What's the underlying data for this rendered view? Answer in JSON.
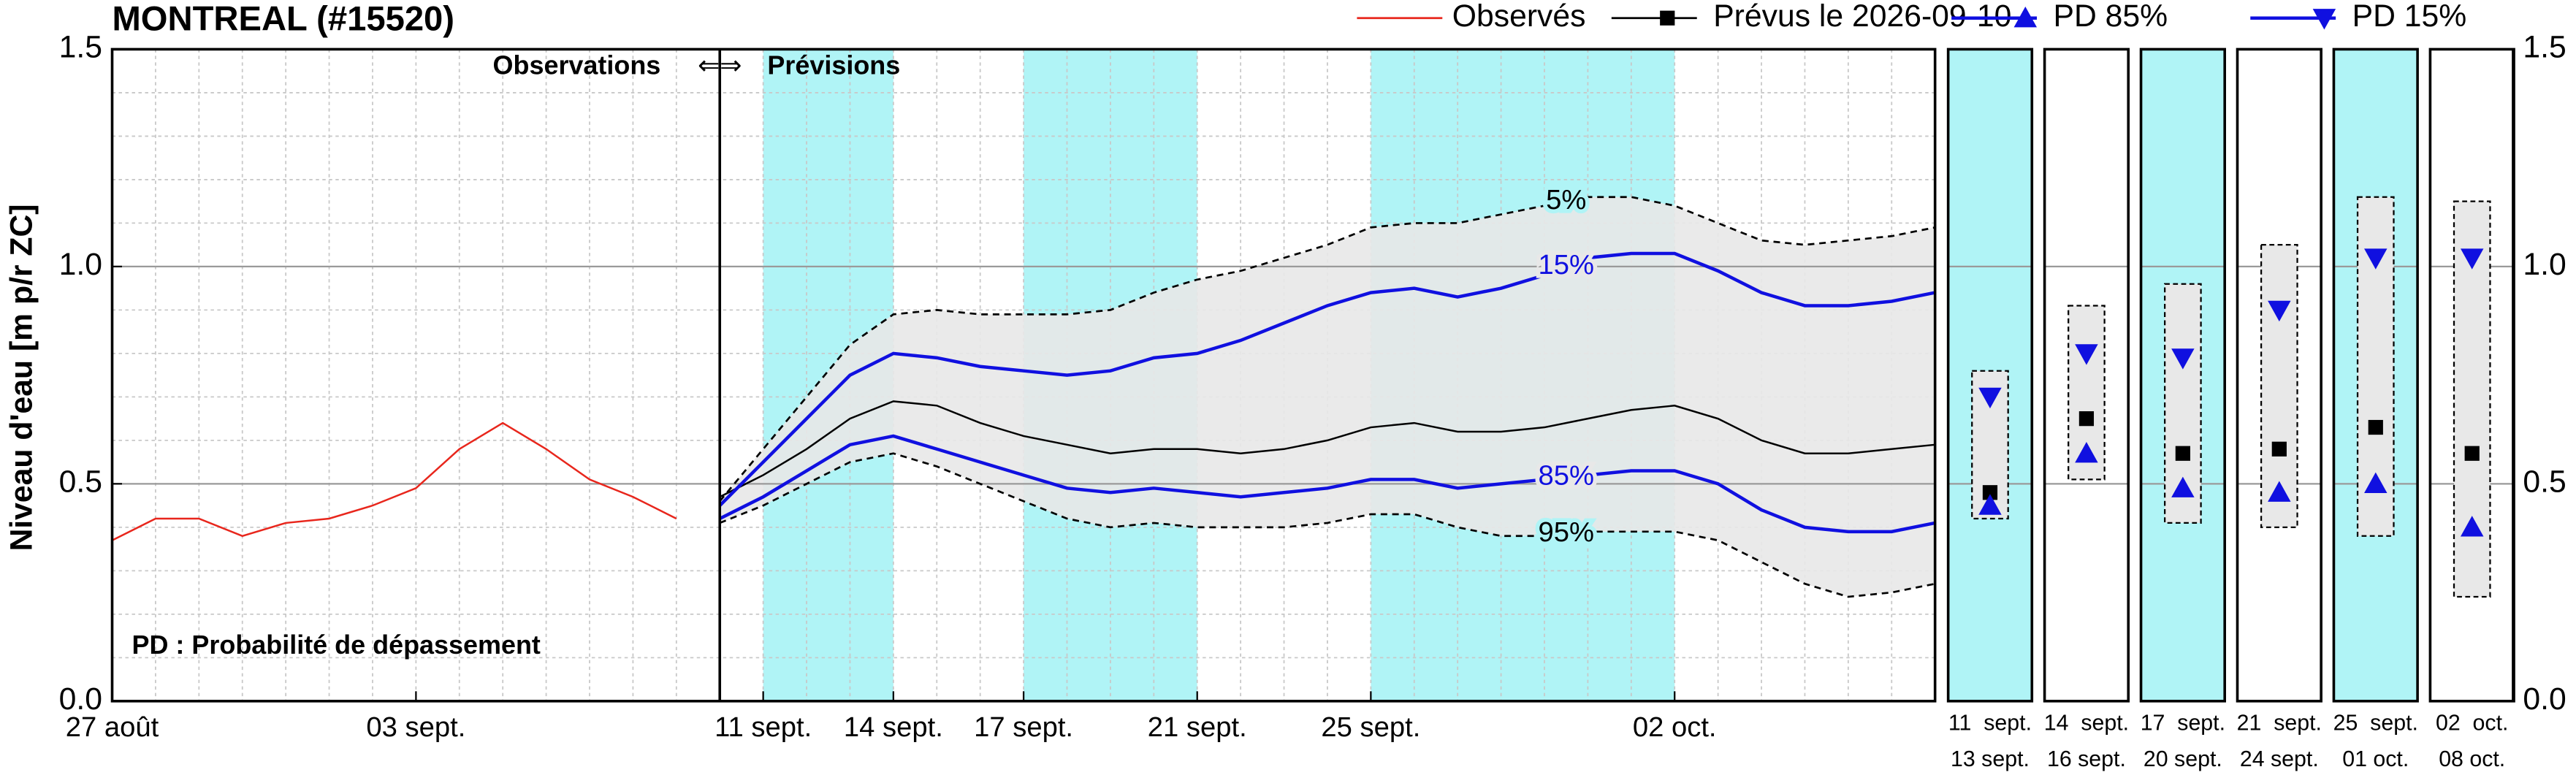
{
  "chart_data": {
    "type": "line",
    "title": "MONTREAL (#15520)",
    "y_label": "Niveau d'eau [m p/r ZC]",
    "ylim": [
      0,
      1.5
    ],
    "yticks": [
      {
        "value": 0,
        "label": "0.0"
      },
      {
        "value": 0.5,
        "label": "0.5"
      },
      {
        "value": 1,
        "label": "1.0"
      },
      {
        "value": 1.5,
        "label": "1.5"
      }
    ],
    "xlim": [
      0,
      42
    ],
    "xticks": [
      {
        "value": 0,
        "label": "27 août"
      },
      {
        "value": 7,
        "label": "03 sept."
      },
      {
        "value": 15,
        "label": "11 sept."
      },
      {
        "value": 18,
        "label": "14 sept."
      },
      {
        "value": 21,
        "label": "17 sept."
      },
      {
        "value": 25,
        "label": "21 sept."
      },
      {
        "value": 29,
        "label": "25 sept."
      },
      {
        "value": 36,
        "label": "02 oct."
      }
    ],
    "grid": true,
    "shade_color": "#b0f4f6",
    "band_color": "#e8e8e8",
    "shaded_spans": [
      [
        15,
        18
      ],
      [
        21,
        25
      ],
      [
        29,
        36
      ]
    ],
    "annotations": {
      "observations": "Observations",
      "arrows": "⇐⇒",
      "forecasts": "Prévisions",
      "note": "PD : Probabilité de dépassement"
    },
    "series": [
      {
        "name": "Observés",
        "color": "#e8261c",
        "marker": "none",
        "dash": false,
        "in_legend": true,
        "x": [
          0,
          1,
          2,
          3,
          4,
          5,
          6,
          7,
          8,
          9,
          10,
          11,
          12,
          13
        ],
        "values": [
          0.37,
          0.42,
          0.42,
          0.38,
          0.41,
          0.42,
          0.45,
          0.49,
          0.58,
          0.64,
          0.58,
          0.51,
          0.47,
          0.42
        ]
      },
      {
        "name": "Prévus le 2026-09-10",
        "color": "#000000",
        "marker": "square",
        "dash": false,
        "in_legend": true,
        "x": [
          14,
          15,
          16,
          17,
          18,
          19,
          20,
          21,
          22,
          23,
          24,
          25,
          26,
          27,
          28,
          29,
          30,
          31,
          32,
          33,
          34,
          35,
          36,
          37,
          38,
          39,
          40,
          41,
          42
        ],
        "values": [
          0.47,
          0.52,
          0.58,
          0.65,
          0.69,
          0.68,
          0.64,
          0.61,
          0.59,
          0.57,
          0.58,
          0.58,
          0.57,
          0.58,
          0.6,
          0.63,
          0.64,
          0.62,
          0.62,
          0.63,
          0.65,
          0.67,
          0.68,
          0.65,
          0.6,
          0.57,
          0.57,
          0.58,
          0.59
        ]
      },
      {
        "name": "PD 85%",
        "label": "85%",
        "color": "#1010e0",
        "marker": "triangle-up",
        "dash": false,
        "in_legend": true,
        "x": [
          14,
          15,
          16,
          17,
          18,
          19,
          20,
          21,
          22,
          23,
          24,
          25,
          26,
          27,
          28,
          29,
          30,
          31,
          32,
          33,
          34,
          35,
          36,
          37,
          38,
          39,
          40,
          41,
          42
        ],
        "values": [
          0.42,
          0.47,
          0.53,
          0.59,
          0.61,
          0.58,
          0.55,
          0.52,
          0.49,
          0.48,
          0.49,
          0.48,
          0.47,
          0.48,
          0.49,
          0.51,
          0.51,
          0.49,
          0.5,
          0.51,
          0.52,
          0.53,
          0.53,
          0.5,
          0.44,
          0.4,
          0.39,
          0.39,
          0.41
        ]
      },
      {
        "name": "PD 15%",
        "label": "15%",
        "color": "#1010e0",
        "marker": "triangle-down",
        "dash": false,
        "in_legend": true,
        "x": [
          14,
          15,
          16,
          17,
          18,
          19,
          20,
          21,
          22,
          23,
          24,
          25,
          26,
          27,
          28,
          29,
          30,
          31,
          32,
          33,
          34,
          35,
          36,
          37,
          38,
          39,
          40,
          41,
          42
        ],
        "values": [
          0.45,
          0.55,
          0.65,
          0.75,
          0.8,
          0.79,
          0.77,
          0.76,
          0.75,
          0.76,
          0.79,
          0.8,
          0.83,
          0.87,
          0.91,
          0.94,
          0.95,
          0.93,
          0.95,
          0.98,
          1.02,
          1.03,
          1.03,
          0.99,
          0.94,
          0.91,
          0.91,
          0.92,
          0.94
        ]
      },
      {
        "name": "5%",
        "color": "#000000",
        "marker": "none",
        "dash": true,
        "in_legend": false,
        "x": [
          14,
          15,
          16,
          17,
          18,
          19,
          20,
          21,
          22,
          23,
          24,
          25,
          26,
          27,
          28,
          29,
          30,
          31,
          32,
          33,
          34,
          35,
          36,
          37,
          38,
          39,
          40,
          41,
          42
        ],
        "values": [
          0.46,
          0.58,
          0.7,
          0.82,
          0.89,
          0.9,
          0.89,
          0.89,
          0.89,
          0.9,
          0.94,
          0.97,
          0.99,
          1.02,
          1.05,
          1.09,
          1.1,
          1.1,
          1.12,
          1.14,
          1.16,
          1.16,
          1.14,
          1.1,
          1.06,
          1.05,
          1.06,
          1.07,
          1.09
        ]
      },
      {
        "name": "95%",
        "color": "#000000",
        "marker": "none",
        "dash": true,
        "in_legend": false,
        "x": [
          14,
          15,
          16,
          17,
          18,
          19,
          20,
          21,
          22,
          23,
          24,
          25,
          26,
          27,
          28,
          29,
          30,
          31,
          32,
          33,
          34,
          35,
          36,
          37,
          38,
          39,
          40,
          41,
          42
        ],
        "values": [
          0.41,
          0.45,
          0.5,
          0.55,
          0.57,
          0.54,
          0.5,
          0.46,
          0.42,
          0.4,
          0.41,
          0.4,
          0.4,
          0.4,
          0.41,
          0.43,
          0.43,
          0.4,
          0.38,
          0.38,
          0.39,
          0.39,
          0.39,
          0.37,
          0.32,
          0.27,
          0.24,
          0.25,
          0.27
        ]
      }
    ],
    "periods": [
      {
        "label_start": "11  sept.",
        "label_end": "13 sept.",
        "shaded": true,
        "max": 0.76,
        "min": 0.42,
        "mean": 0.48,
        "pd85": 0.45,
        "pd15": 0.7
      },
      {
        "label_start": "14  sept.",
        "label_end": "16 sept.",
        "shaded": false,
        "max": 0.91,
        "min": 0.51,
        "mean": 0.65,
        "pd85": 0.57,
        "pd15": 0.8
      },
      {
        "label_start": "17  sept.",
        "label_end": "20 sept.",
        "shaded": true,
        "max": 0.96,
        "min": 0.41,
        "mean": 0.57,
        "pd85": 0.49,
        "pd15": 0.79
      },
      {
        "label_start": "21  sept.",
        "label_end": "24 sept.",
        "shaded": false,
        "max": 1.05,
        "min": 0.4,
        "mean": 0.58,
        "pd85": 0.48,
        "pd15": 0.9
      },
      {
        "label_start": "25  sept.",
        "label_end": "01 oct.",
        "shaded": true,
        "max": 1.16,
        "min": 0.38,
        "mean": 0.63,
        "pd85": 0.5,
        "pd15": 1.02
      },
      {
        "label_start": "02  oct.",
        "label_end": "08 oct.",
        "shaded": false,
        "max": 1.15,
        "min": 0.24,
        "mean": 0.57,
        "pd85": 0.4,
        "pd15": 1.02
      }
    ]
  }
}
